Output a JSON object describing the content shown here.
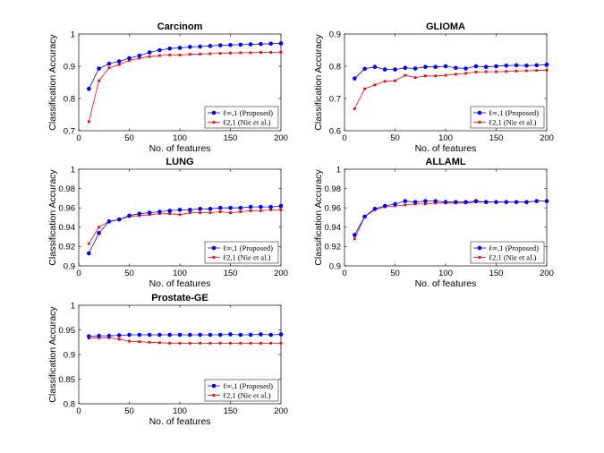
{
  "xlabel": "No. of features",
  "ylabel": "Classification Accuracy",
  "colors": {
    "proposed": "#0000ff",
    "baseline": "#ff0000"
  },
  "chart_data": [
    {
      "type": "line",
      "title": "Carcinom",
      "xlabel": "No. of features",
      "ylabel": "Classification Accuracy",
      "xlim": [
        0,
        200
      ],
      "ylim": [
        0.7,
        1.0
      ],
      "xticks": [
        0,
        50,
        100,
        150,
        200
      ],
      "yticks": [
        0.7,
        0.8,
        0.9,
        1.0
      ],
      "ytick_labels": [
        "0.7",
        "0.8",
        "0.9",
        "1"
      ],
      "legend_position": "bottom-right",
      "x": [
        10,
        20,
        30,
        40,
        50,
        60,
        70,
        80,
        90,
        100,
        110,
        120,
        130,
        140,
        150,
        160,
        170,
        180,
        190,
        200
      ],
      "series": [
        {
          "name": "ℓ∞,1 (Proposed)",
          "color": "#0000ff",
          "marker": "circle",
          "values": [
            0.83,
            0.893,
            0.908,
            0.915,
            0.925,
            0.933,
            0.943,
            0.95,
            0.955,
            0.957,
            0.96,
            0.961,
            0.963,
            0.965,
            0.966,
            0.967,
            0.968,
            0.969,
            0.97,
            0.971
          ]
        },
        {
          "name": "ℓ2,1 (Nie et al.)",
          "color": "#ff0000",
          "marker": "square",
          "values": [
            0.728,
            0.855,
            0.895,
            0.905,
            0.918,
            0.925,
            0.93,
            0.933,
            0.935,
            0.935,
            0.937,
            0.938,
            0.939,
            0.94,
            0.941,
            0.942,
            0.942,
            0.943,
            0.943,
            0.944
          ]
        }
      ]
    },
    {
      "type": "line",
      "title": "GLIOMA",
      "xlabel": "No. of features",
      "ylabel": "Classification Accuracy",
      "xlim": [
        0,
        200
      ],
      "ylim": [
        0.6,
        0.9
      ],
      "xticks": [
        0,
        50,
        100,
        150,
        200
      ],
      "yticks": [
        0.6,
        0.7,
        0.8,
        0.9
      ],
      "ytick_labels": [
        "0.6",
        "0.7",
        "0.8",
        "0.9"
      ],
      "legend_position": "bottom-right",
      "x": [
        10,
        20,
        30,
        40,
        50,
        60,
        70,
        80,
        90,
        100,
        110,
        120,
        130,
        140,
        150,
        160,
        170,
        180,
        190,
        200
      ],
      "series": [
        {
          "name": "ℓ∞,1 (Proposed)",
          "color": "#0000ff",
          "marker": "circle",
          "values": [
            0.762,
            0.792,
            0.798,
            0.79,
            0.79,
            0.795,
            0.793,
            0.798,
            0.798,
            0.8,
            0.795,
            0.793,
            0.8,
            0.798,
            0.8,
            0.802,
            0.803,
            0.802,
            0.803,
            0.805
          ]
        },
        {
          "name": "ℓ2,1 (Nie et al.)",
          "color": "#ff0000",
          "marker": "square",
          "values": [
            0.668,
            0.73,
            0.742,
            0.753,
            0.755,
            0.772,
            0.765,
            0.77,
            0.77,
            0.772,
            0.775,
            0.778,
            0.782,
            0.783,
            0.783,
            0.784,
            0.785,
            0.786,
            0.787,
            0.788
          ]
        }
      ]
    },
    {
      "type": "line",
      "title": "LUNG",
      "xlabel": "No. of features",
      "ylabel": "Classification Accuracy",
      "xlim": [
        0,
        200
      ],
      "ylim": [
        0.9,
        1.0
      ],
      "xticks": [
        0,
        50,
        100,
        150,
        200
      ],
      "yticks": [
        0.9,
        0.92,
        0.94,
        0.96,
        0.98,
        1.0
      ],
      "ytick_labels": [
        "0.9",
        "0.92",
        "0.94",
        "0.96",
        "0.98",
        "1"
      ],
      "legend_position": "bottom-right",
      "x": [
        10,
        20,
        30,
        40,
        50,
        60,
        70,
        80,
        90,
        100,
        110,
        120,
        130,
        140,
        150,
        160,
        170,
        180,
        190,
        200
      ],
      "series": [
        {
          "name": "ℓ∞,1 (Proposed)",
          "color": "#0000ff",
          "marker": "circle",
          "values": [
            0.913,
            0.934,
            0.946,
            0.948,
            0.952,
            0.954,
            0.955,
            0.956,
            0.957,
            0.958,
            0.958,
            0.959,
            0.959,
            0.96,
            0.96,
            0.96,
            0.961,
            0.961,
            0.961,
            0.962
          ]
        },
        {
          "name": "ℓ2,1 (Nie et al.)",
          "color": "#ff0000",
          "marker": "square",
          "values": [
            0.923,
            0.94,
            0.946,
            0.948,
            0.951,
            0.952,
            0.953,
            0.954,
            0.954,
            0.953,
            0.955,
            0.955,
            0.955,
            0.956,
            0.955,
            0.956,
            0.957,
            0.957,
            0.958,
            0.958
          ]
        }
      ]
    },
    {
      "type": "line",
      "title": "ALLAML",
      "xlabel": "No. of features",
      "ylabel": "Classification Accuracy",
      "xlim": [
        0,
        200
      ],
      "ylim": [
        0.9,
        1.0
      ],
      "xticks": [
        0,
        50,
        100,
        150,
        200
      ],
      "yticks": [
        0.9,
        0.92,
        0.94,
        0.96,
        0.98,
        1.0
      ],
      "ytick_labels": [
        "0.9",
        "0.92",
        "0.94",
        "0.96",
        "0.98",
        "1"
      ],
      "legend_position": "bottom-right",
      "x": [
        10,
        20,
        30,
        40,
        50,
        60,
        70,
        80,
        90,
        100,
        110,
        120,
        130,
        140,
        150,
        160,
        170,
        180,
        190,
        200
      ],
      "series": [
        {
          "name": "ℓ∞,1 (Proposed)",
          "color": "#0000ff",
          "marker": "circle",
          "values": [
            0.932,
            0.951,
            0.959,
            0.962,
            0.964,
            0.967,
            0.966,
            0.967,
            0.967,
            0.966,
            0.966,
            0.966,
            0.967,
            0.966,
            0.966,
            0.966,
            0.966,
            0.966,
            0.967,
            0.967
          ]
        },
        {
          "name": "ℓ2,1 (Nie et al.)",
          "color": "#ff0000",
          "marker": "square",
          "values": [
            0.928,
            0.951,
            0.958,
            0.961,
            0.962,
            0.963,
            0.964,
            0.964,
            0.965,
            0.965,
            0.965,
            0.965,
            0.966,
            0.966,
            0.966,
            0.966,
            0.966,
            0.966,
            0.967,
            0.967
          ]
        }
      ]
    },
    {
      "type": "line",
      "title": "Prostate-GE",
      "xlabel": "No. of features",
      "ylabel": "Classification Accuracy",
      "xlim": [
        0,
        200
      ],
      "ylim": [
        0.8,
        1.0
      ],
      "xticks": [
        0,
        50,
        100,
        150,
        200
      ],
      "yticks": [
        0.8,
        0.85,
        0.9,
        0.95,
        1.0
      ],
      "ytick_labels": [
        "0.8",
        "0.85",
        "0.9",
        "0.95",
        "1"
      ],
      "legend_position": "bottom-right",
      "x": [
        10,
        20,
        30,
        40,
        50,
        60,
        70,
        80,
        90,
        100,
        110,
        120,
        130,
        140,
        150,
        160,
        170,
        180,
        190,
        200
      ],
      "series": [
        {
          "name": "ℓ∞,1 (Proposed)",
          "color": "#0000ff",
          "marker": "circle",
          "values": [
            0.937,
            0.938,
            0.938,
            0.939,
            0.94,
            0.94,
            0.94,
            0.94,
            0.94,
            0.94,
            0.94,
            0.94,
            0.94,
            0.94,
            0.941,
            0.94,
            0.94,
            0.941,
            0.94,
            0.941
          ]
        },
        {
          "name": "ℓ2,1 (Nie et al.)",
          "color": "#ff0000",
          "marker": "square",
          "values": [
            0.933,
            0.934,
            0.934,
            0.931,
            0.927,
            0.926,
            0.925,
            0.924,
            0.923,
            0.923,
            0.923,
            0.923,
            0.923,
            0.923,
            0.923,
            0.923,
            0.923,
            0.923,
            0.923,
            0.923
          ]
        }
      ]
    }
  ]
}
